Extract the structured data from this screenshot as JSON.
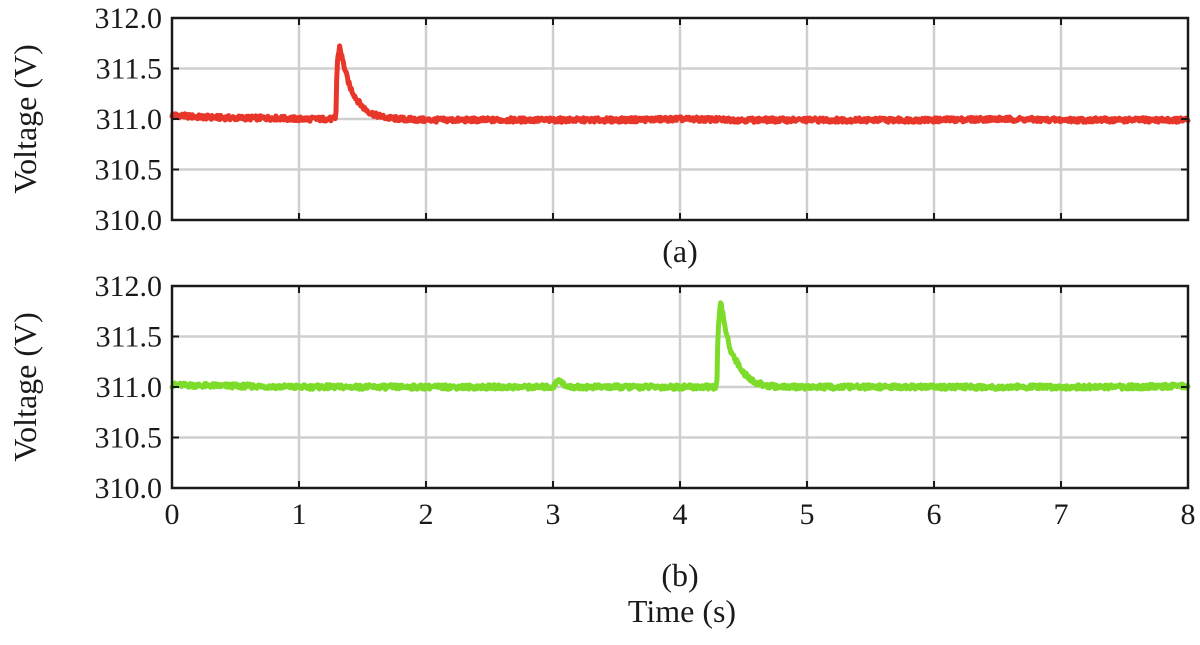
{
  "figure": {
    "xlabel": "Time (s)"
  },
  "chart_data": [
    {
      "type": "line",
      "caption": "(a)",
      "ylabel": "Voltage (V)",
      "xlim": [
        0,
        8
      ],
      "ylim": [
        310.0,
        312.0
      ],
      "x_ticks": [
        "0",
        "1",
        "2",
        "3",
        "4",
        "5",
        "6",
        "7",
        "8"
      ],
      "y_ticks": [
        "312.0",
        "311.5",
        "311.0",
        "310.5",
        "310.0"
      ],
      "grid": true,
      "color": "#e8372a",
      "series": [
        {
          "x": [
            0,
            0.2,
            0.5,
            0.8,
            1.0,
            1.2,
            1.29,
            1.3,
            1.32,
            1.34,
            1.37,
            1.4,
            1.45,
            1.5,
            1.55,
            1.6,
            1.7,
            1.8,
            2.0,
            2.5,
            3.0,
            3.5,
            4.0,
            4.5,
            5.0,
            5.5,
            6.0,
            6.5,
            7.0,
            7.5,
            8.0
          ],
          "y": [
            311.04,
            311.02,
            311.01,
            311.01,
            311.0,
            311.0,
            311.0,
            311.55,
            311.72,
            311.6,
            311.45,
            311.32,
            311.2,
            311.12,
            311.07,
            311.04,
            311.01,
            311.0,
            310.99,
            310.99,
            310.99,
            310.99,
            311.0,
            310.99,
            310.99,
            310.99,
            310.99,
            311.0,
            310.99,
            310.99,
            310.99
          ]
        }
      ]
    },
    {
      "type": "line",
      "caption": "(b)",
      "ylabel": "Voltage (V)",
      "xlim": [
        0,
        8
      ],
      "ylim": [
        310.0,
        312.0
      ],
      "x_ticks": [
        "0",
        "1",
        "2",
        "3",
        "4",
        "5",
        "6",
        "7",
        "8"
      ],
      "y_ticks": [
        "312.0",
        "311.5",
        "311.0",
        "310.5",
        "310.0"
      ],
      "grid": true,
      "color": "#7ddb2a",
      "series": [
        {
          "x": [
            0,
            0.5,
            1.0,
            1.5,
            2.0,
            2.5,
            3.0,
            3.05,
            3.1,
            3.5,
            4.0,
            4.29,
            4.3,
            4.32,
            4.34,
            4.37,
            4.4,
            4.45,
            4.5,
            4.55,
            4.6,
            4.7,
            4.8,
            5.0,
            5.5,
            6.0,
            6.5,
            7.0,
            7.5,
            8.0
          ],
          "y": [
            311.02,
            311.01,
            311.0,
            311.0,
            311.0,
            311.0,
            311.0,
            311.08,
            311.0,
            311.0,
            311.0,
            311.0,
            311.55,
            311.85,
            311.7,
            311.5,
            311.36,
            311.24,
            311.14,
            311.08,
            311.04,
            311.01,
            311.0,
            311.0,
            311.0,
            311.0,
            311.0,
            311.0,
            311.0,
            311.01
          ]
        }
      ]
    }
  ]
}
